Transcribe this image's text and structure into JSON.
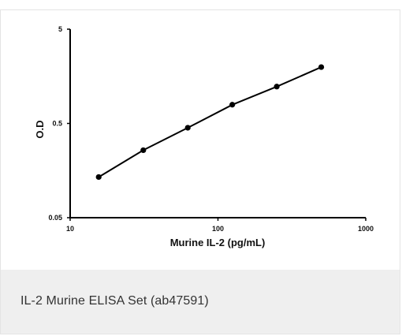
{
  "chart_data": {
    "type": "line",
    "title": "",
    "xlabel": "Murine IL-2 (pg/mL)",
    "ylabel": "O.D",
    "x_scale": "log",
    "y_scale": "log",
    "xlim": [
      10,
      1000
    ],
    "ylim": [
      0.05,
      5
    ],
    "x_ticks": [
      "10",
      "100",
      "1000"
    ],
    "y_ticks": [
      "0.05",
      "0.5",
      "5"
    ],
    "grid": false,
    "legend": "none",
    "series": [
      {
        "x": [
          15.6,
          31.25,
          62.5,
          125,
          250,
          500
        ],
        "y": [
          0.135,
          0.26,
          0.45,
          0.79,
          1.23,
          1.98
        ],
        "color": "#000000"
      }
    ]
  },
  "caption": {
    "text": "IL-2 Murine ELISA Set (ab47591)"
  }
}
